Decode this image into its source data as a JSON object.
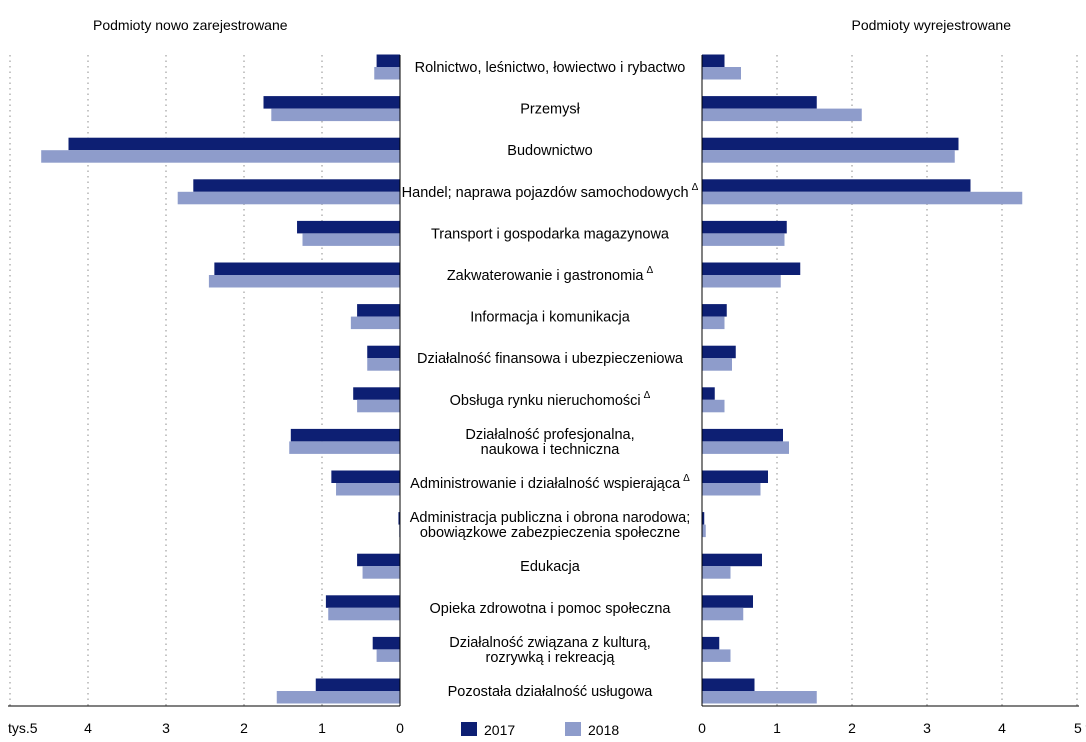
{
  "chart_data": {
    "type": "bar",
    "orientation": "horizontal-butterfly",
    "panels": [
      {
        "title": "Podmioty nowo zarejestrowane",
        "side": "left",
        "xlim": [
          0,
          5
        ],
        "unit": "tys."
      },
      {
        "title": "Podmioty wyrejestrowane",
        "side": "right",
        "xlim": [
          0,
          5
        ],
        "unit": "tys."
      }
    ],
    "left_ticks": [
      "tys.5",
      "4",
      "3",
      "2",
      "1",
      "0"
    ],
    "right_ticks": [
      "0",
      "1",
      "2",
      "3",
      "4",
      "5 tys."
    ],
    "categories": [
      [
        "Rolnictwo, leśnictwo, łowiectwo  i rybactwo"
      ],
      [
        "Przemysł"
      ],
      [
        "Budownictwo"
      ],
      [
        "Handel; naprawa pojazdów samochodowych"
      ],
      [
        "Transport i gospodarka magazynowa"
      ],
      [
        "Zakwaterowanie  i gastronomia"
      ],
      [
        "Informacja i komunikacja"
      ],
      [
        "Działalność finansowa i ubezpieczeniowa"
      ],
      [
        "Obsługa rynku nieruchomości"
      ],
      [
        "Działalność profesjonalna,",
        "naukowa i techniczna"
      ],
      [
        "Administrowanie i działalność wspierająca"
      ],
      [
        "Administracja publiczna i obrona narodowa;",
        "obowiązkowe zabezpieczenia społeczne"
      ],
      [
        "Edukacja"
      ],
      [
        "Opieka zdrowotna i pomoc społeczna"
      ],
      [
        "Działalność związana  z kulturą,",
        "rozrywką i rekreacją"
      ],
      [
        "Pozostała działalność usługowa"
      ]
    ],
    "delta_marked": [
      false,
      false,
      false,
      true,
      false,
      true,
      false,
      false,
      true,
      false,
      true,
      false,
      false,
      false,
      false,
      false
    ],
    "delta_symbol": "Δ",
    "series": [
      {
        "name": "2017",
        "color": "#0d1f73",
        "registered": [
          0.3,
          1.75,
          4.25,
          2.65,
          1.32,
          2.38,
          0.55,
          0.42,
          0.6,
          1.4,
          0.88,
          0.02,
          0.55,
          0.95,
          0.35,
          1.08
        ],
        "deregistered": [
          0.3,
          1.53,
          3.42,
          3.58,
          1.13,
          1.31,
          0.33,
          0.45,
          0.17,
          1.08,
          0.88,
          0.03,
          0.8,
          0.68,
          0.23,
          0.7
        ]
      },
      {
        "name": "2018",
        "color": "#8e9ccb",
        "registered": [
          0.33,
          1.65,
          4.6,
          2.85,
          1.25,
          2.45,
          0.63,
          0.42,
          0.55,
          1.42,
          0.82,
          0.01,
          0.48,
          0.92,
          0.3,
          1.58
        ],
        "deregistered": [
          0.52,
          2.13,
          3.37,
          4.27,
          1.1,
          1.05,
          0.3,
          0.4,
          0.3,
          1.16,
          0.78,
          0.05,
          0.38,
          0.55,
          0.38,
          1.53
        ]
      }
    ],
    "legend": [
      "2017",
      "2018"
    ],
    "grid": true
  }
}
